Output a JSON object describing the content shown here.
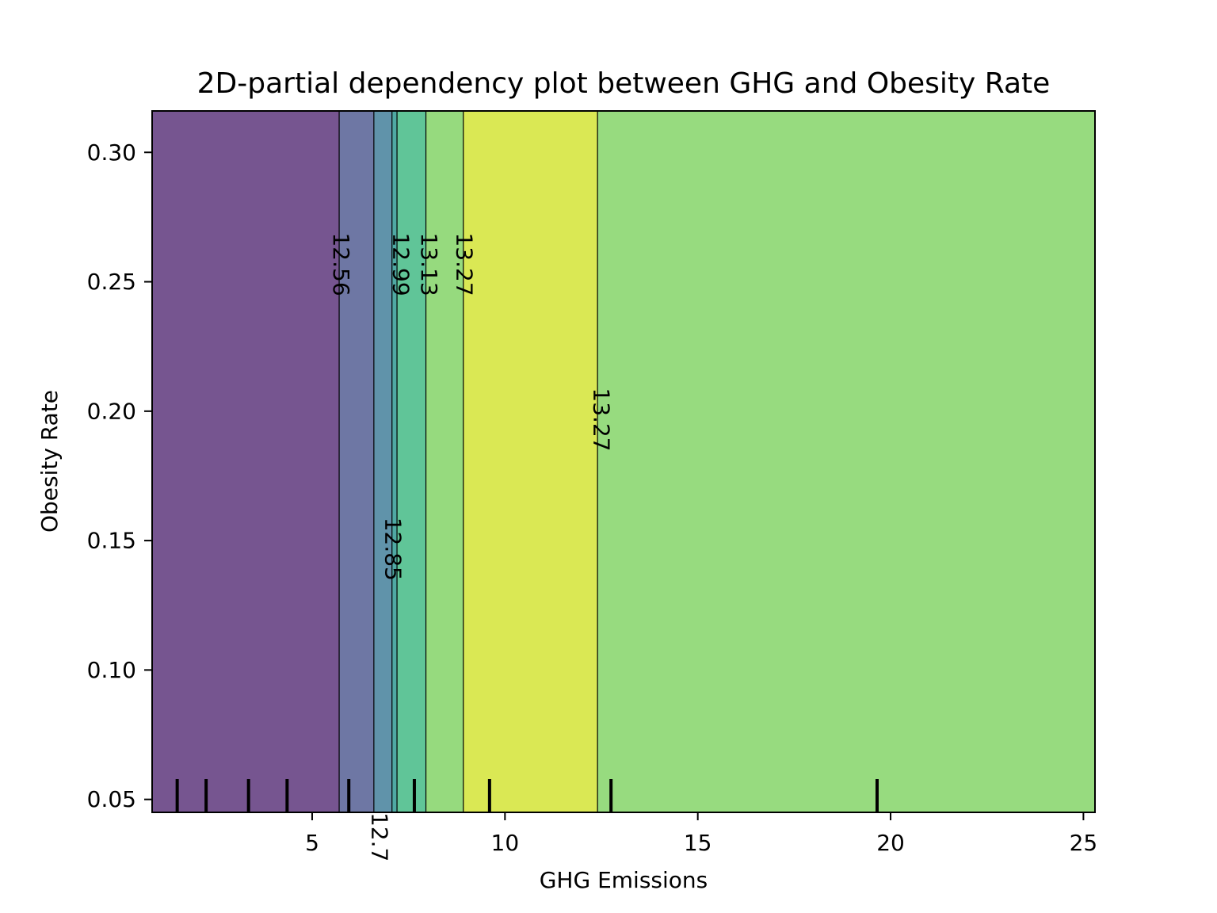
{
  "chart_data": {
    "type": "heatmap",
    "subtype": "filled-contour",
    "title": "2D-partial dependency plot between GHG and Obesity Rate",
    "xlabel": "GHG Emissions",
    "ylabel": "Obesity Rate",
    "xlim": [
      0.85,
      25.3
    ],
    "ylim": [
      0.045,
      0.316
    ],
    "x_ticks": [
      {
        "value": 5,
        "label": "5"
      },
      {
        "value": 10,
        "label": "10"
      },
      {
        "value": 15,
        "label": "15"
      },
      {
        "value": 20,
        "label": "20"
      },
      {
        "value": 25,
        "label": "25"
      }
    ],
    "y_ticks": [
      {
        "value": 0.05,
        "label": "0.05"
      },
      {
        "value": 0.1,
        "label": "0.10"
      },
      {
        "value": 0.15,
        "label": "0.15"
      },
      {
        "value": 0.2,
        "label": "0.20"
      },
      {
        "value": 0.25,
        "label": "0.25"
      },
      {
        "value": 0.3,
        "label": "0.30"
      }
    ],
    "regions": [
      {
        "x_start": 0.85,
        "x_end": 5.7,
        "color": "#765590"
      },
      {
        "x_start": 5.7,
        "x_end": 6.6,
        "color": "#6e77a4"
      },
      {
        "x_start": 6.6,
        "x_end": 7.07,
        "color": "#6093aa"
      },
      {
        "x_start": 7.07,
        "x_end": 7.2,
        "color": "#4fa9a3"
      },
      {
        "x_start": 7.2,
        "x_end": 7.95,
        "color": "#60c598"
      },
      {
        "x_start": 7.95,
        "x_end": 8.92,
        "color": "#96da7e"
      },
      {
        "x_start": 8.92,
        "x_end": 12.4,
        "color": "#dae854"
      },
      {
        "x_start": 12.4,
        "x_end": 25.3,
        "color": "#97db7f"
      }
    ],
    "contour_lines": [
      5.7,
      6.6,
      7.07,
      7.2,
      7.95,
      8.92,
      12.4
    ],
    "contour_labels": [
      {
        "text": "12.56",
        "x": 5.75,
        "y": 0.269
      },
      {
        "text": "12.7",
        "x": 6.75,
        "y": 0.045
      },
      {
        "text": "12.85",
        "x": 7.1,
        "y": 0.159
      },
      {
        "text": "12.99",
        "x": 7.3,
        "y": 0.269
      },
      {
        "text": "13.13",
        "x": 8.03,
        "y": 0.269
      },
      {
        "text": "13.27",
        "x": 8.95,
        "y": 0.269
      },
      {
        "text": "13.27",
        "x": 12.5,
        "y": 0.209
      }
    ],
    "rug_x": [
      1.5,
      2.25,
      3.35,
      4.35,
      5.95,
      7.65,
      9.6,
      12.75,
      19.65
    ],
    "grid": false,
    "legend": "none"
  }
}
